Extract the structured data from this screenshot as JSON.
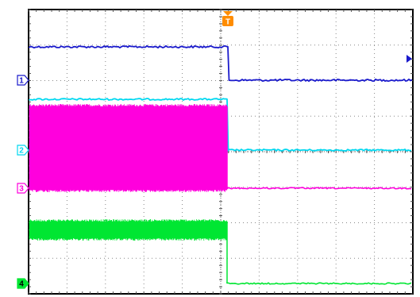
{
  "trigger": {
    "label": "T",
    "color": "#ff8c00"
  },
  "grid": {
    "divisions_x": 10,
    "divisions_y": 8,
    "minor_per_division": 5
  },
  "channels": [
    {
      "id": "1",
      "label": "1",
      "color": "#1a1acc",
      "marker_style": "outline",
      "noise": "low"
    },
    {
      "id": "2",
      "label": "2",
      "color": "#00d8f0",
      "marker_style": "outline",
      "noise": "low"
    },
    {
      "id": "3",
      "label": "3",
      "color": "#ff00dd",
      "marker_style": "outline",
      "noise": "high"
    },
    {
      "id": "4",
      "label": "4",
      "color": "#00e632",
      "marker_style": "filled",
      "noise": "medium"
    }
  ],
  "trigger_level_marker": {
    "icon": "trigger-level-arrow-icon",
    "color": "#1a1acc"
  }
}
